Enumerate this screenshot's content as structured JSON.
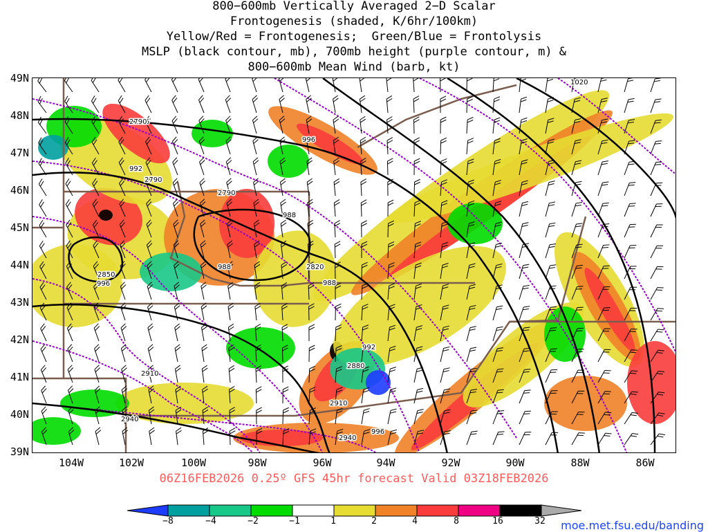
{
  "title_lines": [
    "800−600mb Vertically Averaged 2−D Scalar",
    "Frontogenesis (shaded, K/6hr/100km)",
    "Yellow/Red = Frontogenesis;  Green/Blue = Frontolysis",
    "MSLP (black contour, mb), 700mb height (purple contour, m) &",
    "800−600mb Mean Wind (barb, kt)"
  ],
  "lat_labels": [
    "49N",
    "48N",
    "47N",
    "46N",
    "45N",
    "44N",
    "43N",
    "42N",
    "41N",
    "40N",
    "39N"
  ],
  "lon_labels": [
    "104W",
    "102W",
    "100W",
    "98W",
    "96W",
    "94W",
    "92W",
    "90W",
    "88W",
    "86W"
  ],
  "valid_line": "06Z16FEB2026 0.25º GFS 45hr forecast Valid 03Z18FEB2026",
  "colorbar": {
    "tick_labels": [
      "−8",
      "−4",
      "−2",
      "−1",
      "1",
      "2",
      "4",
      "8",
      "16",
      "32"
    ],
    "colors": [
      "#1e3cff",
      "#00a0a0",
      "#18c888",
      "#00dc00",
      "#ffffff",
      "#e6dc32",
      "#f08228",
      "#fa3c3c",
      "#f00082",
      "#000000",
      "#aaaaaa"
    ]
  },
  "contour_labels": {
    "mslp": [
      "996",
      "992",
      "988",
      "988",
      "988",
      "996",
      "992",
      "996",
      "1020",
      "996"
    ],
    "height": [
      "2790",
      "2790",
      "2790",
      "2850",
      "2820",
      "2880",
      "2910",
      "2910",
      "2940",
      "2940"
    ]
  },
  "credit": "moe.met.fsu.edu/banding",
  "colors": {
    "mslp": "#000000",
    "height": "#9900cc",
    "border": "#7b5d4e",
    "valid_text": "#ff5a5a",
    "credit_text": "#1a44ff"
  }
}
